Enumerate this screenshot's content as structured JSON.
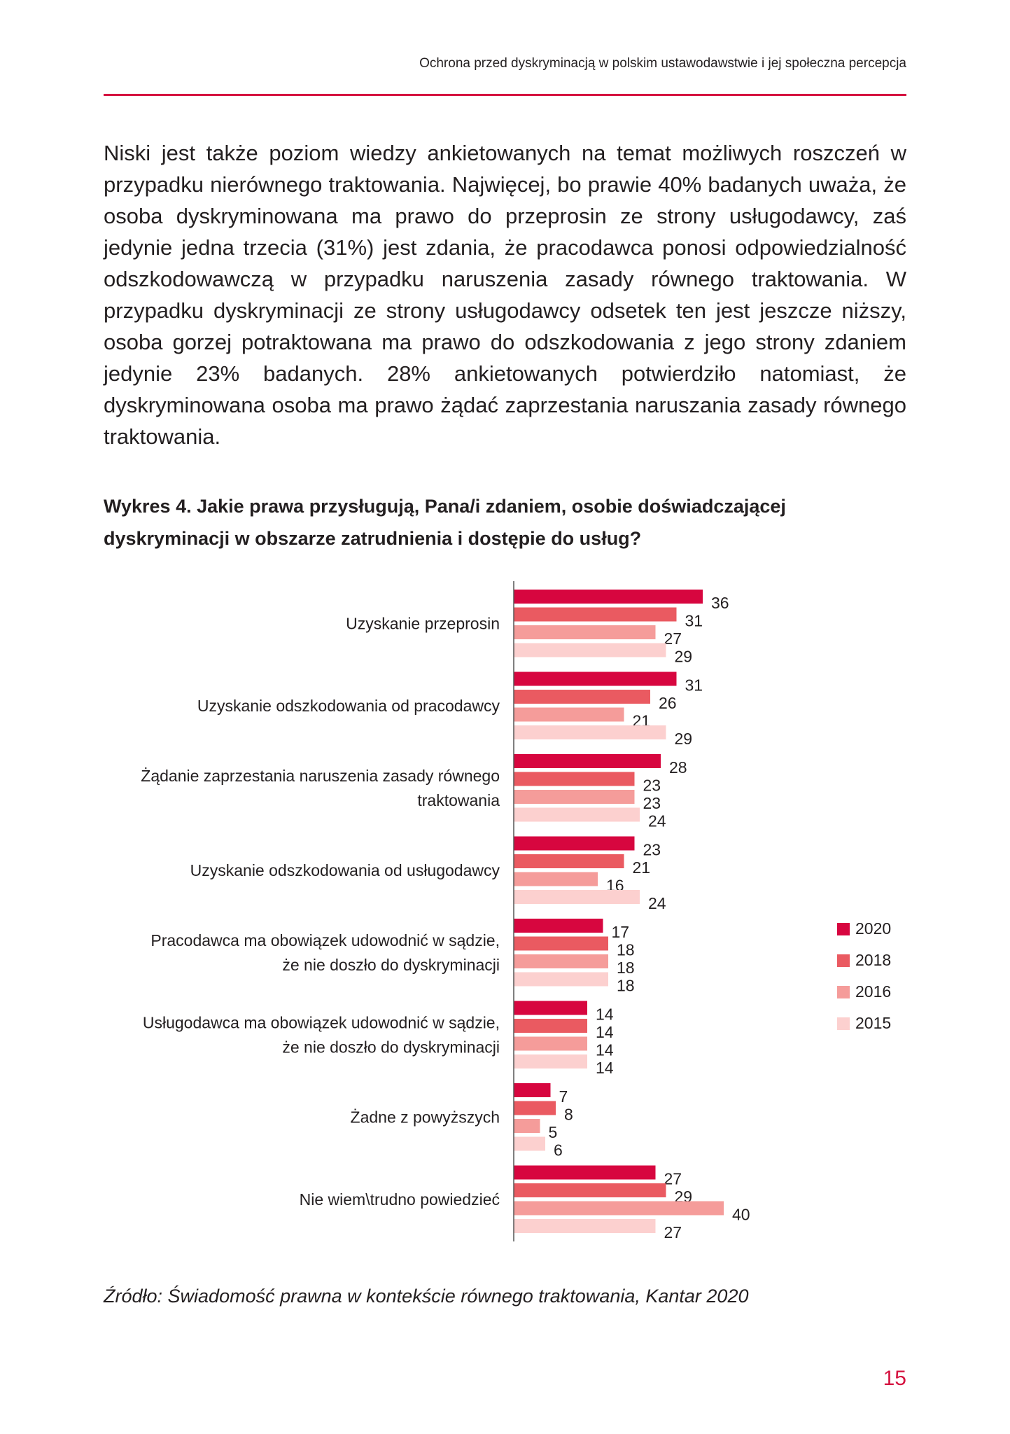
{
  "header": {
    "running_title": "Ochrona przed dyskryminacją w polskim ustawodawstwie i jej społeczna percepcja"
  },
  "body": {
    "paragraph": "Niski jest także poziom wiedzy ankietowanych na temat możliwych roszczeń w przypadku nierównego traktowania. Najwięcej, bo prawie 40% badanych uważa, że osoba dyskryminowana ma prawo do przeprosin ze strony usługodawcy, zaś jedynie jedna trzecia (31%) jest zdania, że pracodawca ponosi odpowiedzialność odszkodowawczą w przypadku naruszenia zasady równego traktowania. W przypadku dyskryminacji ze strony usługodawcy odsetek ten jest jeszcze niższy, osoba gorzej potraktowana ma prawo do odszkodowania z jego strony zdaniem jedynie 23% badanych. 28% ankietowanych potwierdziło natomiast, że dyskryminowana osoba ma prawo żądać zaprzestania naruszania zasady równego traktowania."
  },
  "figure": {
    "caption": "Wykres 4. Jakie prawa przysługują, Pana/i zdaniem, osobie doświadczającej dyskryminacji w obszarze zatrudnienia i dostępie do usług?",
    "source": "Źródło: Świadomość prawna w kontekście równego traktowania, Kantar 2020"
  },
  "chart_data": {
    "type": "bar",
    "orientation": "horizontal",
    "title": "Wykres 4. Jakie prawa przysługują, Pana/i zdaniem, osobie doświadczającej dyskryminacji w obszarze zatrudnienia i dostępie do usług?",
    "categories": [
      [
        "Uzyskanie przeprosin"
      ],
      [
        "Uzyskanie odszkodowania od pracodawcy"
      ],
      [
        "Żądanie zaprzestania naruszenia zasady równego",
        "traktowania"
      ],
      [
        "Uzyskanie odszkodowania od usługodawcy"
      ],
      [
        "Pracodawca ma obowiązek udowodnić w sądzie,",
        "że nie doszło do dyskryminacji"
      ],
      [
        "Usługodawca ma obowiązek udowodnić w sądzie,",
        "że nie doszło do dyskryminacji"
      ],
      [
        "Żadne z powyższych"
      ],
      [
        "Nie wiem\\trudno powiedzieć"
      ]
    ],
    "series": [
      {
        "name": "2020",
        "color": "#d7063f",
        "values": [
          36,
          31,
          28,
          23,
          17,
          14,
          7,
          27
        ]
      },
      {
        "name": "2018",
        "color": "#ea5a61",
        "values": [
          31,
          26,
          23,
          21,
          18,
          14,
          8,
          29
        ]
      },
      {
        "name": "2016",
        "color": "#f59c9a",
        "values": [
          27,
          21,
          23,
          16,
          18,
          14,
          5,
          40
        ]
      },
      {
        "name": "2015",
        "color": "#fcd0cf",
        "values": [
          29,
          29,
          24,
          24,
          18,
          14,
          6,
          27
        ]
      }
    ],
    "data_labels": true,
    "legend_position": "right",
    "grid": false
  },
  "page": {
    "number": "15"
  },
  "colors": {
    "accent": "#d5123f"
  }
}
